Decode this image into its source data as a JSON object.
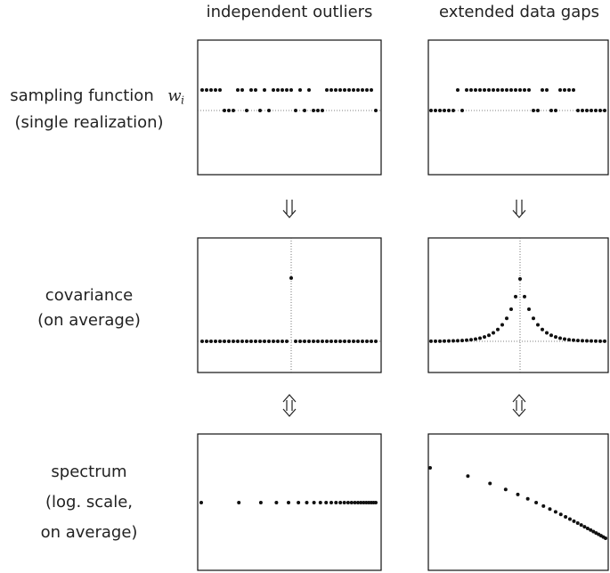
{
  "columns": [
    "independent outliers",
    "extended data gaps"
  ],
  "rows": [
    {
      "lines": [
        "sampling function",
        "(single realization)"
      ],
      "symbol": "w",
      "subscript": "i"
    },
    {
      "lines": [
        "covariance",
        "(on average)"
      ]
    },
    {
      "lines": [
        "spectrum",
        "(log. scale,",
        "on average)"
      ]
    }
  ]
}
